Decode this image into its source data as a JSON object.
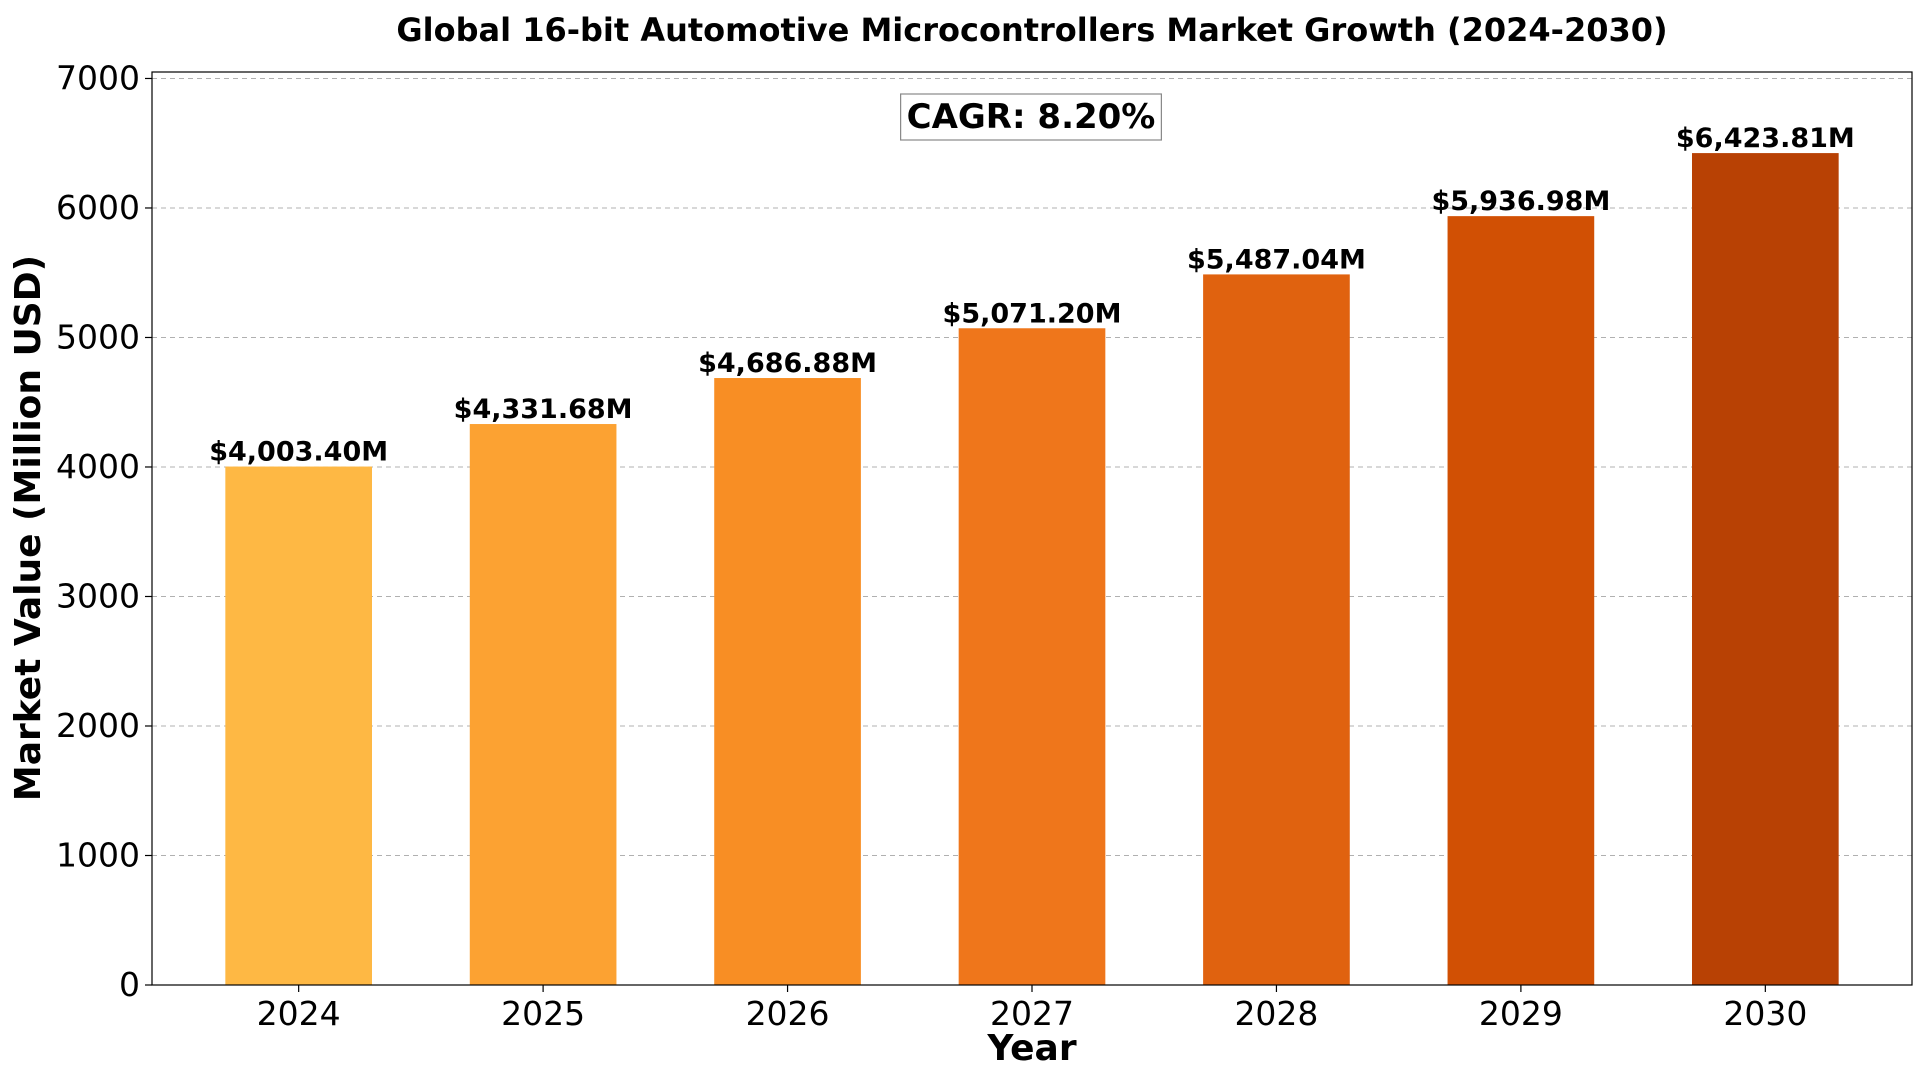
{
  "chart_data": {
    "type": "bar",
    "title": "Global 16-bit Automotive Microcontrollers Market Growth (2024-2030)",
    "xlabel": "Year",
    "ylabel": "Market Value (Million USD)",
    "categories": [
      "2024",
      "2025",
      "2026",
      "2027",
      "2028",
      "2029",
      "2030"
    ],
    "values": [
      4003.4,
      4331.68,
      4686.88,
      5071.2,
      5487.04,
      5936.98,
      6423.81
    ],
    "data_labels": [
      "$4,003.40M",
      "$4,331.68M",
      "$4,686.88M",
      "$5,071.20M",
      "$5,487.04M",
      "$5,936.98M",
      "$6,423.81M"
    ],
    "bar_colors": [
      "#FEB844",
      "#FCA232",
      "#F88E24",
      "#EF761B",
      "#E0620F",
      "#D15004",
      "#B84104"
    ],
    "ylim": [
      0,
      7050
    ],
    "yticks": [
      0,
      1000,
      2000,
      3000,
      4000,
      5000,
      6000,
      7000
    ],
    "ytick_labels": [
      "0",
      "1000",
      "2000",
      "3000",
      "4000",
      "5000",
      "6000",
      "7000"
    ],
    "grid": "y-dashed",
    "annotation": "CAGR: 8.20%"
  }
}
